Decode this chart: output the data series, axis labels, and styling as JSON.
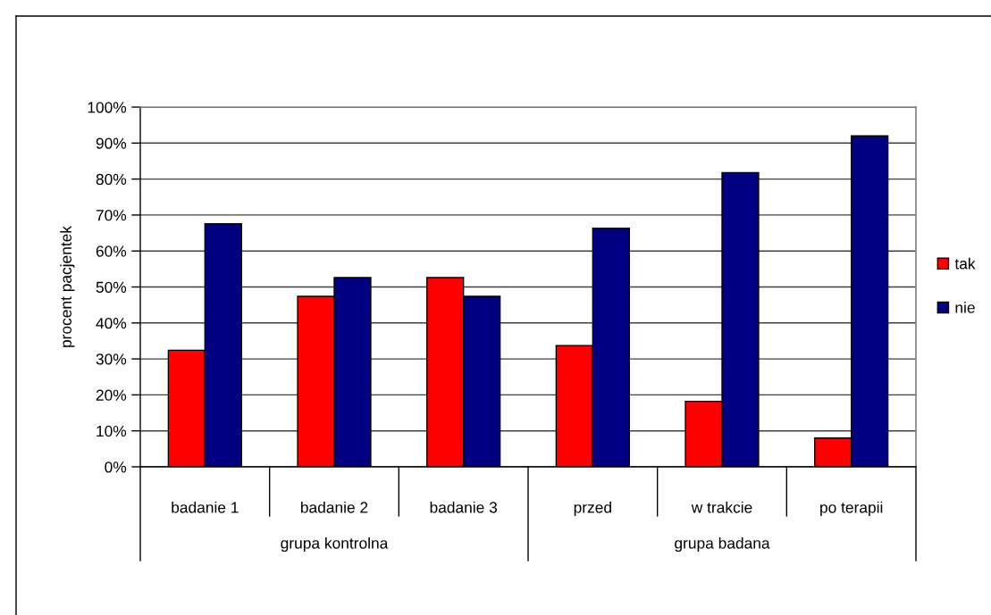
{
  "chart_data": {
    "type": "bar",
    "ylabel": "procent pacjentek",
    "categories": [
      "badanie 1",
      "badanie 2",
      "badanie 3",
      "przed",
      "w trakcie",
      "po terapii"
    ],
    "series": [
      {
        "name": "tak",
        "color": "#ff0000",
        "values": [
          32.4,
          47.4,
          52.6,
          33.7,
          18.2,
          8.0
        ]
      },
      {
        "name": "nie",
        "color": "#000080",
        "values": [
          67.6,
          52.6,
          47.4,
          66.3,
          81.8,
          92.0
        ]
      }
    ],
    "ylim": [
      0,
      100
    ],
    "yticks": [
      {
        "value": 0,
        "label": "0%"
      },
      {
        "value": 10,
        "label": "10%"
      },
      {
        "value": 20,
        "label": "20%"
      },
      {
        "value": 30,
        "label": "30%"
      },
      {
        "value": 40,
        "label": "40%"
      },
      {
        "value": 50,
        "label": "50%"
      },
      {
        "value": 60,
        "label": "60%"
      },
      {
        "value": 70,
        "label": "70%"
      },
      {
        "value": 80,
        "label": "80%"
      },
      {
        "value": 90,
        "label": "90%"
      },
      {
        "value": 100,
        "label": "100%"
      }
    ],
    "grid": "y",
    "legend": "right",
    "annotations": [
      "grupa kontrolna",
      "grupa badana"
    ]
  }
}
